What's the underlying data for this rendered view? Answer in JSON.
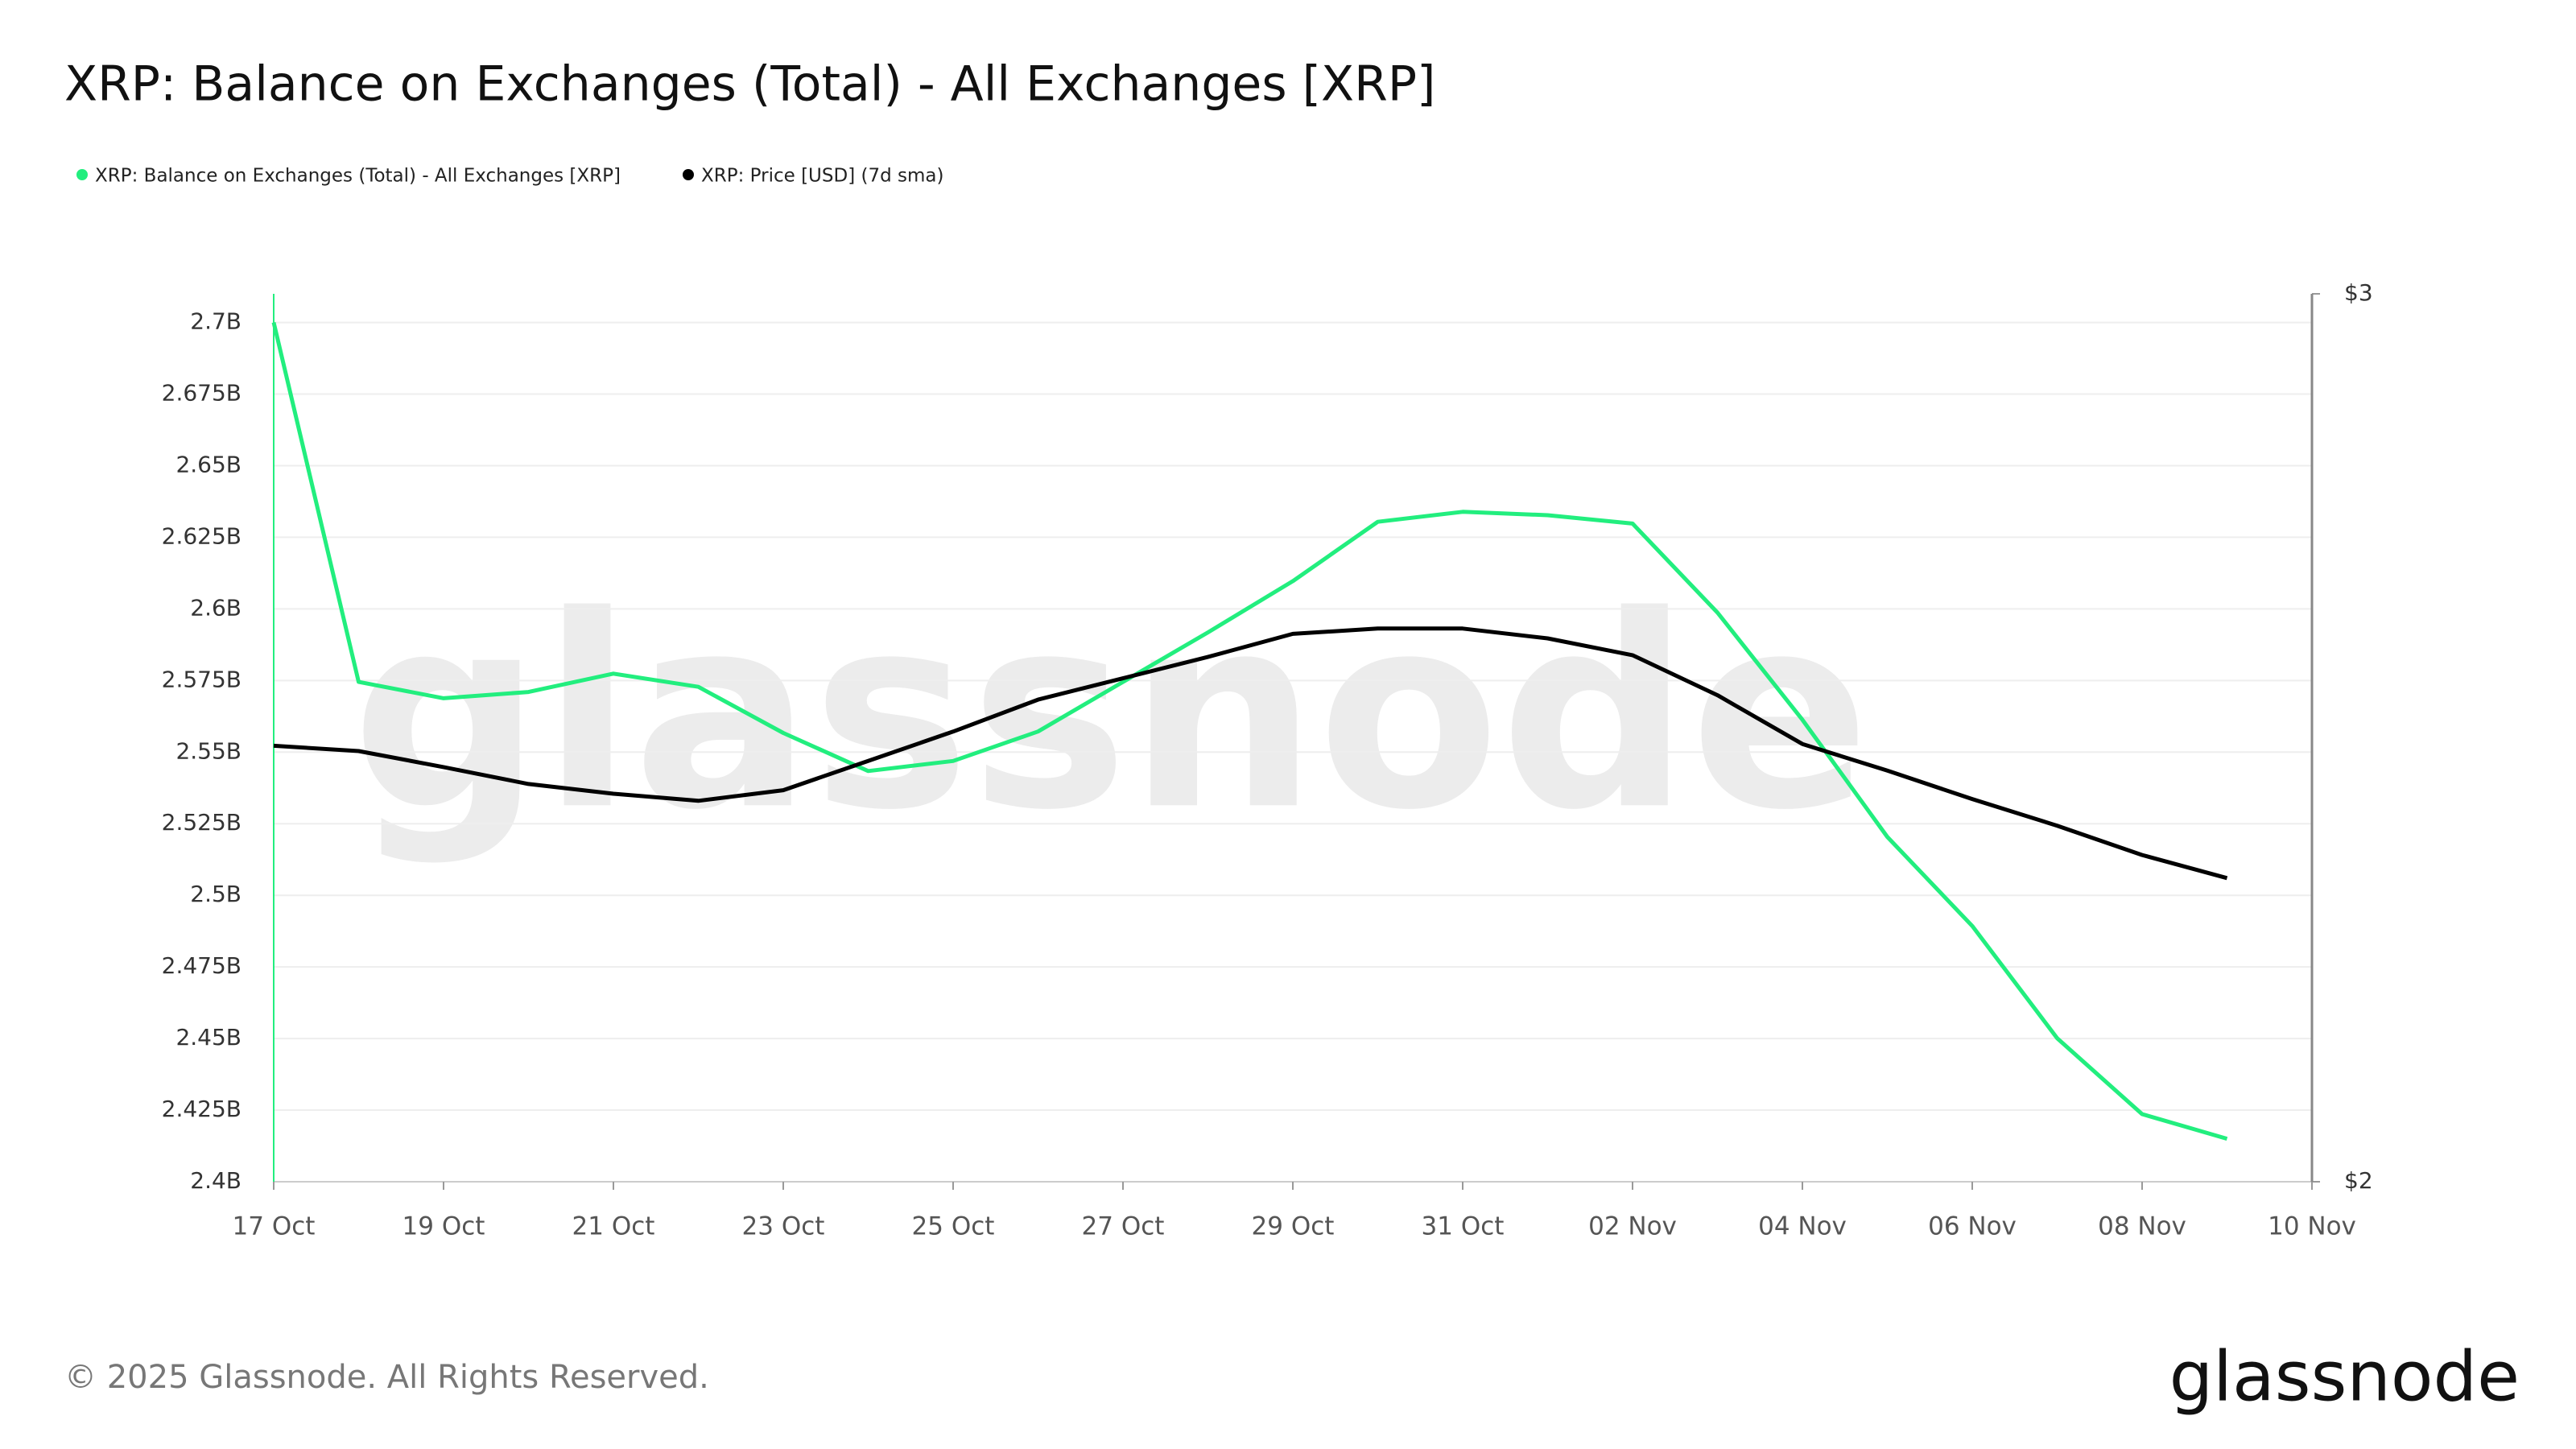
{
  "chart_data": {
    "type": "line",
    "title": "XRP: Balance on Exchanges (Total) - All Exchanges [XRP]",
    "x": [
      "17 Oct",
      "18 Oct",
      "19 Oct",
      "20 Oct",
      "21 Oct",
      "22 Oct",
      "23 Oct",
      "24 Oct",
      "25 Oct",
      "26 Oct",
      "27 Oct",
      "28 Oct",
      "29 Oct",
      "30 Oct",
      "31 Oct",
      "01 Nov",
      "02 Nov",
      "03 Nov",
      "04 Nov",
      "05 Nov",
      "06 Nov",
      "07 Nov",
      "08 Nov",
      "09 Nov"
    ],
    "xlim": [
      "17 Oct",
      "10 Nov"
    ],
    "xticks": [
      "17 Oct",
      "19 Oct",
      "21 Oct",
      "23 Oct",
      "25 Oct",
      "27 Oct",
      "29 Oct",
      "31 Oct",
      "02 Nov",
      "04 Nov",
      "06 Nov",
      "08 Nov",
      "10 Nov"
    ],
    "series": [
      {
        "name": "XRP: Balance on Exchanges (Total) - All Exchanges [XRP]",
        "color": "#22ee7e",
        "values": [
          2700000000,
          2574500000,
          2568800000,
          2571000000,
          2577400000,
          2572800000,
          2556700000,
          2543400000,
          2546900000,
          2557200000,
          2574500000,
          2591800000,
          2609700000,
          2630400000,
          2633900000,
          2632700000,
          2629800000,
          2598700000,
          2561300000,
          2520400000,
          2489300000,
          2450100000,
          2423600000,
          2415000000
        ]
      },
      {
        "name": "XRP: Price [USD] (7d sma)",
        "color": "#000000",
        "axis": "y2",
        "values": [
          2.491,
          2.485,
          2.467,
          2.448,
          2.437,
          2.429,
          2.441,
          2.474,
          2.507,
          2.543,
          2.567,
          2.591,
          2.617,
          2.623,
          2.623,
          2.612,
          2.593,
          2.548,
          2.493,
          2.463,
          2.431,
          2.401,
          2.368,
          2.342
        ]
      }
    ],
    "ylim": [
      2400000000,
      2710000000
    ],
    "yticks": [
      {
        "value": 2400000000,
        "label": "2.4B"
      },
      {
        "value": 2425000000,
        "label": "2.425B"
      },
      {
        "value": 2450000000,
        "label": "2.45B"
      },
      {
        "value": 2475000000,
        "label": "2.475B"
      },
      {
        "value": 2500000000,
        "label": "2.5B"
      },
      {
        "value": 2525000000,
        "label": "2.525B"
      },
      {
        "value": 2550000000,
        "label": "2.55B"
      },
      {
        "value": 2575000000,
        "label": "2.575B"
      },
      {
        "value": 2600000000,
        "label": "2.6B"
      },
      {
        "value": 2625000000,
        "label": "2.625B"
      },
      {
        "value": 2650000000,
        "label": "2.65B"
      },
      {
        "value": 2675000000,
        "label": "2.675B"
      },
      {
        "value": 2700000000,
        "label": "2.7B"
      }
    ],
    "y2lim": [
      2,
      3
    ],
    "y2ticks": [
      {
        "value": 2,
        "label": "$2"
      },
      {
        "value": 3,
        "label": "$3"
      }
    ],
    "grid": true,
    "watermark": "glassnode",
    "footer": "© 2025 Glassnode. All Rights Reserved.",
    "logo": "glassnode"
  }
}
